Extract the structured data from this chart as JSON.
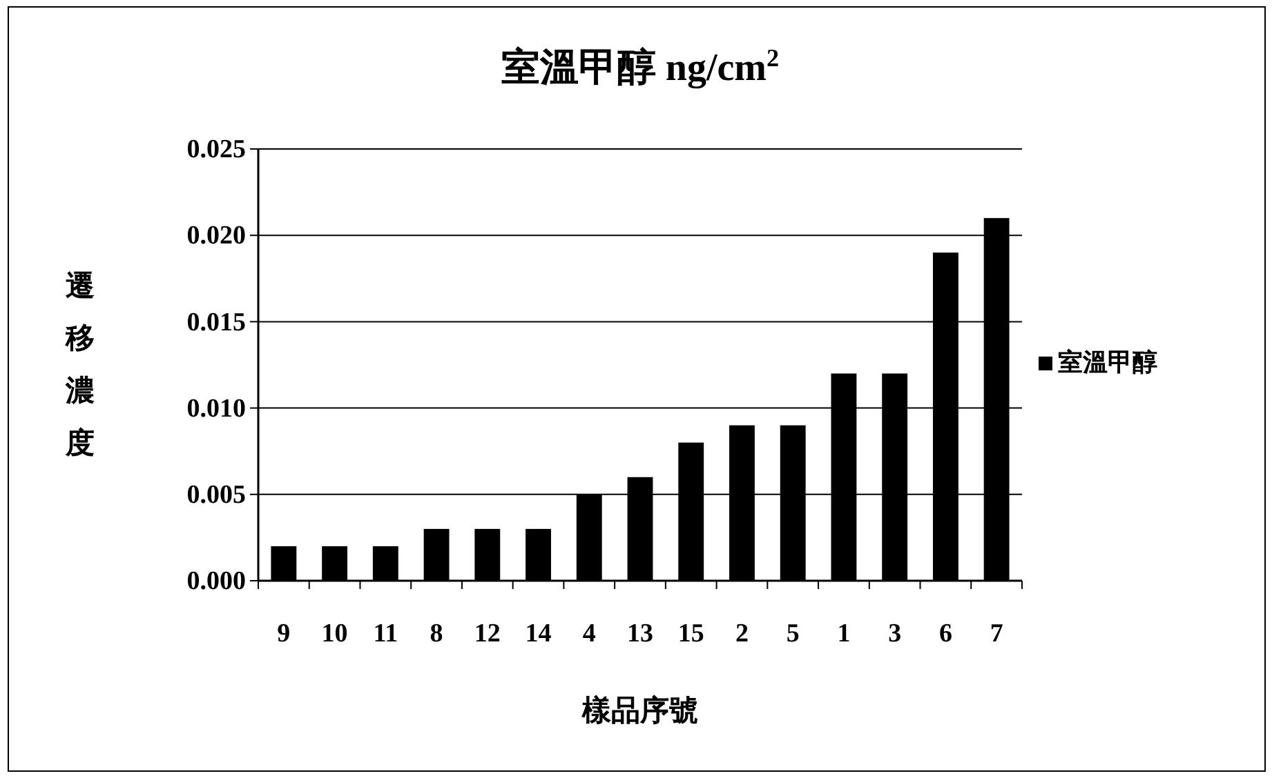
{
  "chart_data": {
    "type": "bar",
    "title": "室溫甲醇 ng/cm$^{2}$",
    "xlabel": "樣品序號",
    "ylabel": "遷移濃度",
    "categories": [
      "9",
      "10",
      "11",
      "8",
      "12",
      "14",
      "4",
      "13",
      "15",
      "2",
      "5",
      "1",
      "3",
      "6",
      "7"
    ],
    "series": [
      {
        "name": "室溫甲醇",
        "color": "#000000",
        "values": [
          0.002,
          0.002,
          0.002,
          0.003,
          0.003,
          0.003,
          0.005,
          0.006,
          0.008,
          0.009,
          0.009,
          0.012,
          0.012,
          0.019,
          0.021
        ]
      }
    ],
    "ylim": [
      0,
      0.025
    ],
    "yticks": [
      {
        "value": 0,
        "label": "0.000"
      },
      {
        "value": 0.005,
        "label": "0.005"
      },
      {
        "value": 0.01,
        "label": "0.010"
      },
      {
        "value": 0.015,
        "label": "0.015"
      },
      {
        "value": 0.02,
        "label": "0.020"
      },
      {
        "value": 0.025,
        "label": "0.025"
      }
    ],
    "grid": "y",
    "legend": "right"
  }
}
